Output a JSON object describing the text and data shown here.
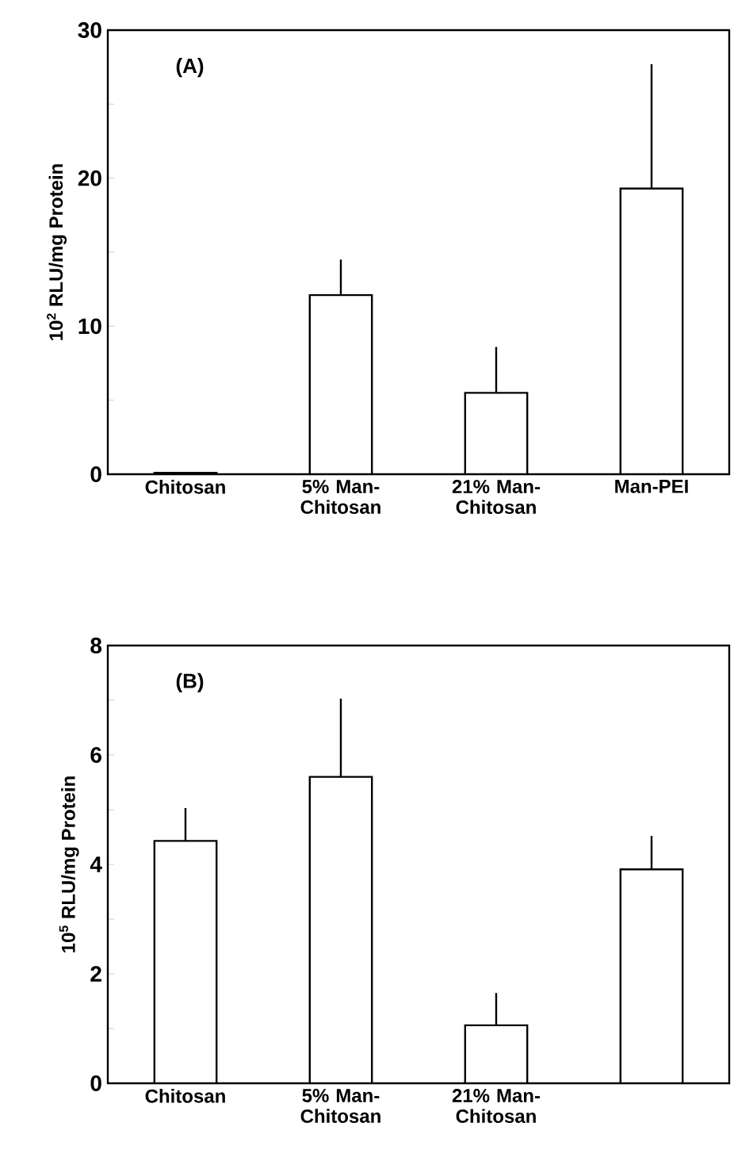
{
  "chart_data": [
    {
      "type": "bar",
      "categories": [
        "Chitosan",
        "5% Man-Chitosan",
        "21% Man-Chitosan",
        "Man-PEI"
      ],
      "values": [
        0.1,
        12.1,
        5.5,
        19.3
      ],
      "errors": [
        null,
        [
          12.1,
          14.5
        ],
        [
          5.5,
          8.6
        ],
        [
          19.3,
          27.7
        ]
      ],
      "color": "#ffffff",
      "ylabel": "10$^{2}$ RLU/mg Protein",
      "ylim": [
        0,
        30
      ],
      "yticks": [
        0,
        {
          "value": 5,
          "label": null
        },
        10,
        {
          "value": 15,
          "label": null
        },
        20,
        {
          "value": 25,
          "label": null
        },
        30
      ],
      "annotations": [
        "(A)"
      ]
    },
    {
      "type": "bar",
      "categories": [
        "Chitosan",
        "5% Man-Chitosan",
        "21% Man-Chitosan",
        null
      ],
      "values": [
        4.43,
        5.6,
        1.06,
        3.91
      ],
      "errors": [
        [
          4.43,
          5.03
        ],
        [
          5.6,
          7.03
        ],
        [
          1.06,
          1.65
        ],
        [
          3.91,
          4.52
        ]
      ],
      "color": "#ffffff",
      "ylabel": "10$^{5}$ RLU/mg Protein",
      "ylim": [
        0,
        8
      ],
      "yticks": [
        0,
        {
          "value": 1,
          "label": null
        },
        2,
        {
          "value": 3,
          "label": null
        },
        4,
        {
          "value": 5,
          "label": null
        },
        6,
        {
          "value": 7,
          "label": null
        },
        8
      ],
      "annotations": [
        "(B)"
      ]
    }
  ]
}
